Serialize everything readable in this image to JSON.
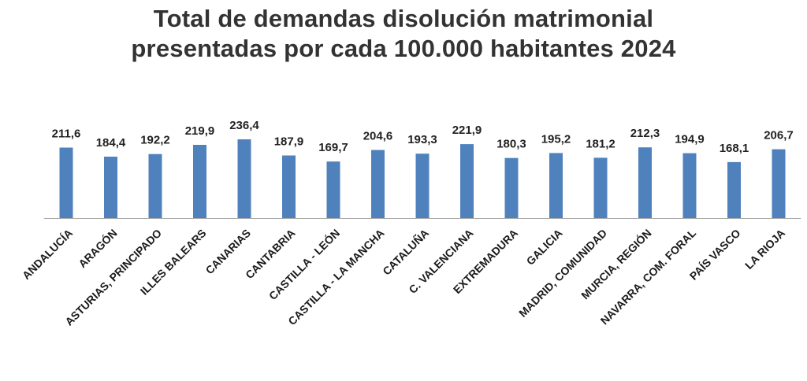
{
  "title_lines": [
    "Total de demandas disolución matrimonial",
    "presentadas por cada 100.000 habitantes 2024"
  ],
  "chart_data": {
    "type": "bar",
    "title": "Total de demandas disolución matrimonial presentadas por cada 100.000 habitantes 2024",
    "categories": [
      "ANDALUCÍA",
      "ARAGÓN",
      "ASTURIAS, PRINCIPADO",
      "ILLES BALEARS",
      "CANARIAS",
      "CANTABRIA",
      "CASTILLA - LEÓN",
      "CASTILLA - LA MANCHA",
      "CATALUÑA",
      "C. VALENCIANA",
      "EXTREMADURA",
      "GALICIA",
      "MADRID, COMUNIDAD",
      "MURCIA, REGIÓN",
      "NAVARRA, COM. FORAL",
      "PAÍS VASCO",
      "LA RIOJA"
    ],
    "values": [
      211.6,
      184.4,
      192.2,
      219.9,
      236.4,
      187.9,
      169.7,
      204.6,
      193.3,
      221.9,
      180.3,
      195.2,
      181.2,
      212.3,
      194.9,
      168.1,
      206.7
    ],
    "value_labels": [
      "211,6",
      "184,4",
      "192,2",
      "219,9",
      "236,4",
      "187,9",
      "169,7",
      "204,6",
      "193,3",
      "221,9",
      "180,3",
      "195,2",
      "181,2",
      "212,3",
      "194,9",
      "168,1",
      "206,7"
    ],
    "xlabel": "",
    "ylabel": "",
    "ylim": [
      0,
      250
    ],
    "grid": false,
    "legend": "none",
    "bar_color": "#4f81bd",
    "axis_color": "#a6a6a6"
  }
}
